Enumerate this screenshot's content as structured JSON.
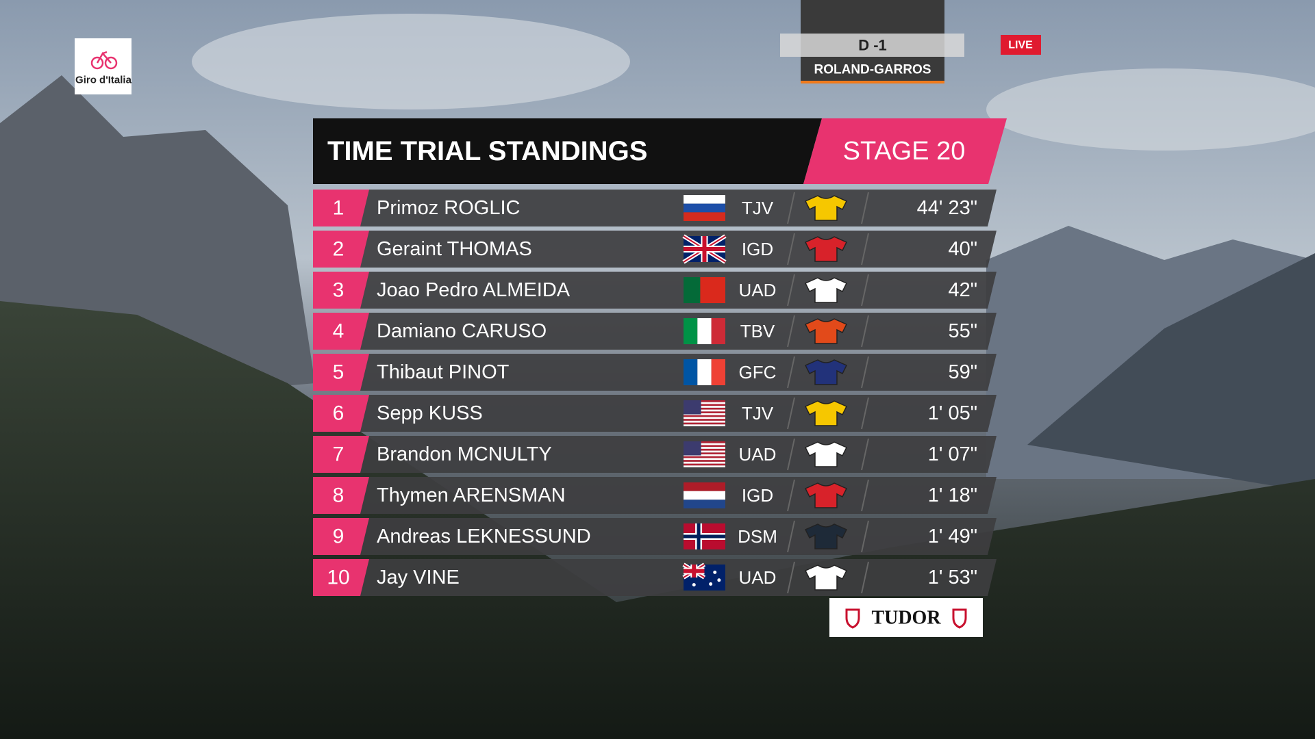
{
  "broadcast": {
    "logo": "Giro d'Italia",
    "countdown": "D -1",
    "event": "ROLAND-GARROS",
    "live": "LIVE",
    "sponsor": "TUDOR"
  },
  "header": {
    "title": "TIME TRIAL STANDINGS",
    "stage": "STAGE 20"
  },
  "rows": [
    {
      "rank": 1,
      "name": "Primoz ROGLIC",
      "team": "TJV",
      "time": "44' 23\""
    },
    {
      "rank": 2,
      "name": "Geraint THOMAS",
      "team": "IGD",
      "time": "40\""
    },
    {
      "rank": 3,
      "name": "Joao Pedro ALMEIDA",
      "team": "UAD",
      "time": "42\""
    },
    {
      "rank": 4,
      "name": "Damiano CARUSO",
      "team": "TBV",
      "time": "55\""
    },
    {
      "rank": 5,
      "name": "Thibaut PINOT",
      "team": "GFC",
      "time": "59\""
    },
    {
      "rank": 6,
      "name": "Sepp KUSS",
      "team": "TJV",
      "time": "1' 05\""
    },
    {
      "rank": 7,
      "name": "Brandon MCNULTY",
      "team": "UAD",
      "time": "1' 07\""
    },
    {
      "rank": 8,
      "name": "Thymen ARENSMAN",
      "team": "IGD",
      "time": "1' 18\""
    },
    {
      "rank": 9,
      "name": "Andreas LEKNESSUND",
      "team": "DSM",
      "time": "1' 49\""
    },
    {
      "rank": 10,
      "name": "Jay VINE",
      "team": "UAD",
      "time": "1' 53\""
    }
  ]
}
